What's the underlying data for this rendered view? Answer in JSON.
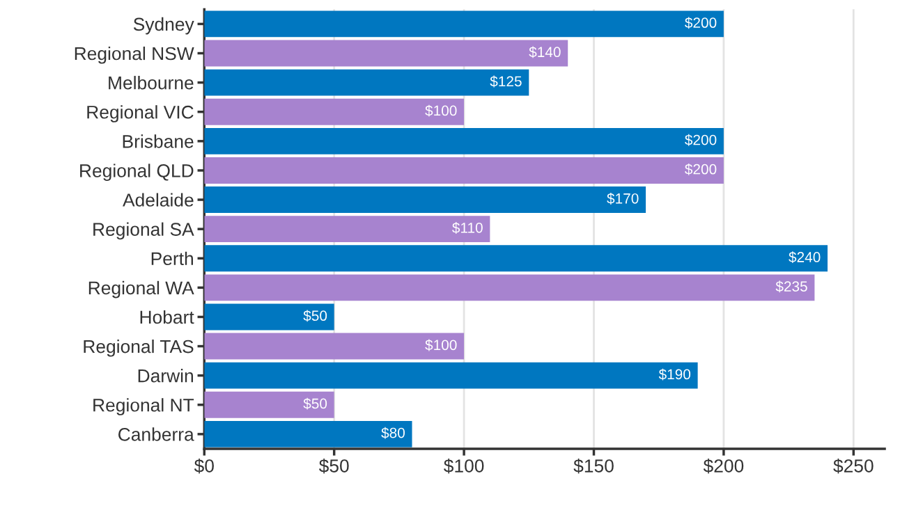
{
  "chart_data": {
    "type": "bar",
    "orientation": "horizontal",
    "categories": [
      "Sydney",
      "Regional NSW",
      "Melbourne",
      "Regional VIC",
      "Brisbane",
      "Regional QLD",
      "Adelaide",
      "Regional SA",
      "Perth",
      "Regional WA",
      "Hobart",
      "Regional TAS",
      "Darwin",
      "Regional NT",
      "Canberra"
    ],
    "values": [
      200,
      140,
      125,
      100,
      200,
      200,
      170,
      110,
      240,
      235,
      50,
      100,
      190,
      50,
      80
    ],
    "value_labels": [
      "$200",
      "$140",
      "$125",
      "$100",
      "$200",
      "$200",
      "$170",
      "$110",
      "$240",
      "$235",
      "$50",
      "$100",
      "$190",
      "$50",
      "$80"
    ],
    "colors": [
      "#0077c0",
      "#a783cf",
      "#0077c0",
      "#a783cf",
      "#0077c0",
      "#a783cf",
      "#0077c0",
      "#a783cf",
      "#0077c0",
      "#a783cf",
      "#0077c0",
      "#a783cf",
      "#0077c0",
      "#a783cf",
      "#0077c0"
    ],
    "xlim": [
      0,
      262
    ],
    "xticks": [
      {
        "value": 0,
        "label": "$0"
      },
      {
        "value": 50,
        "label": "$50"
      },
      {
        "value": 100,
        "label": "$100"
      },
      {
        "value": 150,
        "label": "$150"
      },
      {
        "value": 200,
        "label": "$200"
      },
      {
        "value": 250,
        "label": "$250"
      }
    ],
    "grid": "x",
    "legend": false
  }
}
